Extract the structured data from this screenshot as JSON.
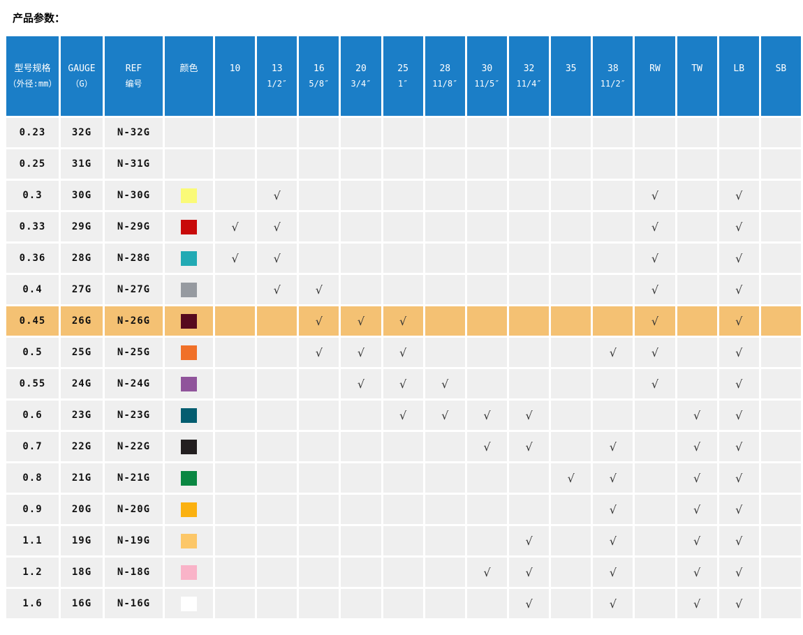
{
  "page": {
    "title": "产品参数："
  },
  "colors": {
    "header_bg": "#1b7ec7",
    "row_bg": "#efefef",
    "highlight_bg": "#f4c173",
    "check_color": "#333333"
  },
  "table": {
    "check_glyph": "√",
    "header": {
      "model": {
        "line1": "型号规格",
        "line2": "（外径:mm）"
      },
      "gauge": {
        "line1": "GAUGE",
        "line2": "（G）"
      },
      "ref": {
        "line1": "REF",
        "line2": "编号"
      },
      "color": {
        "line1": "颜色",
        "line2": ""
      },
      "size_columns": [
        {
          "code": "10",
          "size": ""
        },
        {
          "code": "13",
          "size": "1/2″"
        },
        {
          "code": "16",
          "size": "5/8″"
        },
        {
          "code": "20",
          "size": "3/4″"
        },
        {
          "code": "25",
          "size": "1″"
        },
        {
          "code": "28",
          "size": "11/8″"
        },
        {
          "code": "30",
          "size": "11/5″"
        },
        {
          "code": "32",
          "size": "11/4″"
        },
        {
          "code": "35",
          "size": ""
        },
        {
          "code": "38",
          "size": "11/2″"
        },
        {
          "code": "RW",
          "size": ""
        },
        {
          "code": "TW",
          "size": ""
        },
        {
          "code": "LB",
          "size": ""
        },
        {
          "code": "SB",
          "size": ""
        }
      ]
    },
    "rows": [
      {
        "model": "0.23",
        "gauge": "32G",
        "ref": "N-32G",
        "color": null,
        "highlight": false,
        "checks": []
      },
      {
        "model": "0.25",
        "gauge": "31G",
        "ref": "N-31G",
        "color": null,
        "highlight": false,
        "checks": []
      },
      {
        "model": "0.3",
        "gauge": "30G",
        "ref": "N-30G",
        "color": "#fafa78",
        "highlight": false,
        "checks": [
          1,
          10,
          12
        ]
      },
      {
        "model": "0.33",
        "gauge": "29G",
        "ref": "N-29G",
        "color": "#c80a0a",
        "highlight": false,
        "checks": [
          0,
          1,
          10,
          12
        ]
      },
      {
        "model": "0.36",
        "gauge": "28G",
        "ref": "N-28G",
        "color": "#22aab4",
        "highlight": false,
        "checks": [
          0,
          1,
          10,
          12
        ]
      },
      {
        "model": "0.4",
        "gauge": "27G",
        "ref": "N-27G",
        "color": "#969aa0",
        "highlight": false,
        "checks": [
          1,
          2,
          10,
          12
        ]
      },
      {
        "model": "0.45",
        "gauge": "26G",
        "ref": "N-26G",
        "color": "#570a1e",
        "highlight": true,
        "checks": [
          2,
          3,
          4,
          10,
          12
        ]
      },
      {
        "model": "0.5",
        "gauge": "25G",
        "ref": "N-25G",
        "color": "#f07028",
        "highlight": false,
        "checks": [
          2,
          3,
          4,
          9,
          10,
          12
        ]
      },
      {
        "model": "0.55",
        "gauge": "24G",
        "ref": "N-24G",
        "color": "#90549b",
        "highlight": false,
        "checks": [
          3,
          4,
          5,
          10,
          12
        ]
      },
      {
        "model": "0.6",
        "gauge": "23G",
        "ref": "N-23G",
        "color": "#045d70",
        "highlight": false,
        "checks": [
          4,
          5,
          6,
          7,
          11,
          12
        ]
      },
      {
        "model": "0.7",
        "gauge": "22G",
        "ref": "N-22G",
        "color": "#231f20",
        "highlight": false,
        "checks": [
          6,
          7,
          9,
          11,
          12
        ]
      },
      {
        "model": "0.8",
        "gauge": "21G",
        "ref": "N-21G",
        "color": "#0a8742",
        "highlight": false,
        "checks": [
          8,
          9,
          11,
          12
        ]
      },
      {
        "model": "0.9",
        "gauge": "20G",
        "ref": "N-20G",
        "color": "#fbb110",
        "highlight": false,
        "checks": [
          9,
          11,
          12
        ]
      },
      {
        "model": "1.1",
        "gauge": "19G",
        "ref": "N-19G",
        "color": "#fcc768",
        "highlight": false,
        "checks": [
          7,
          9,
          11,
          12
        ]
      },
      {
        "model": "1.2",
        "gauge": "18G",
        "ref": "N-18G",
        "color": "#f9b3c8",
        "highlight": false,
        "checks": [
          6,
          7,
          9,
          11,
          12
        ]
      },
      {
        "model": "1.6",
        "gauge": "16G",
        "ref": "N-16G",
        "color": "#ffffff",
        "highlight": false,
        "checks": [
          7,
          9,
          11,
          12
        ]
      }
    ]
  }
}
